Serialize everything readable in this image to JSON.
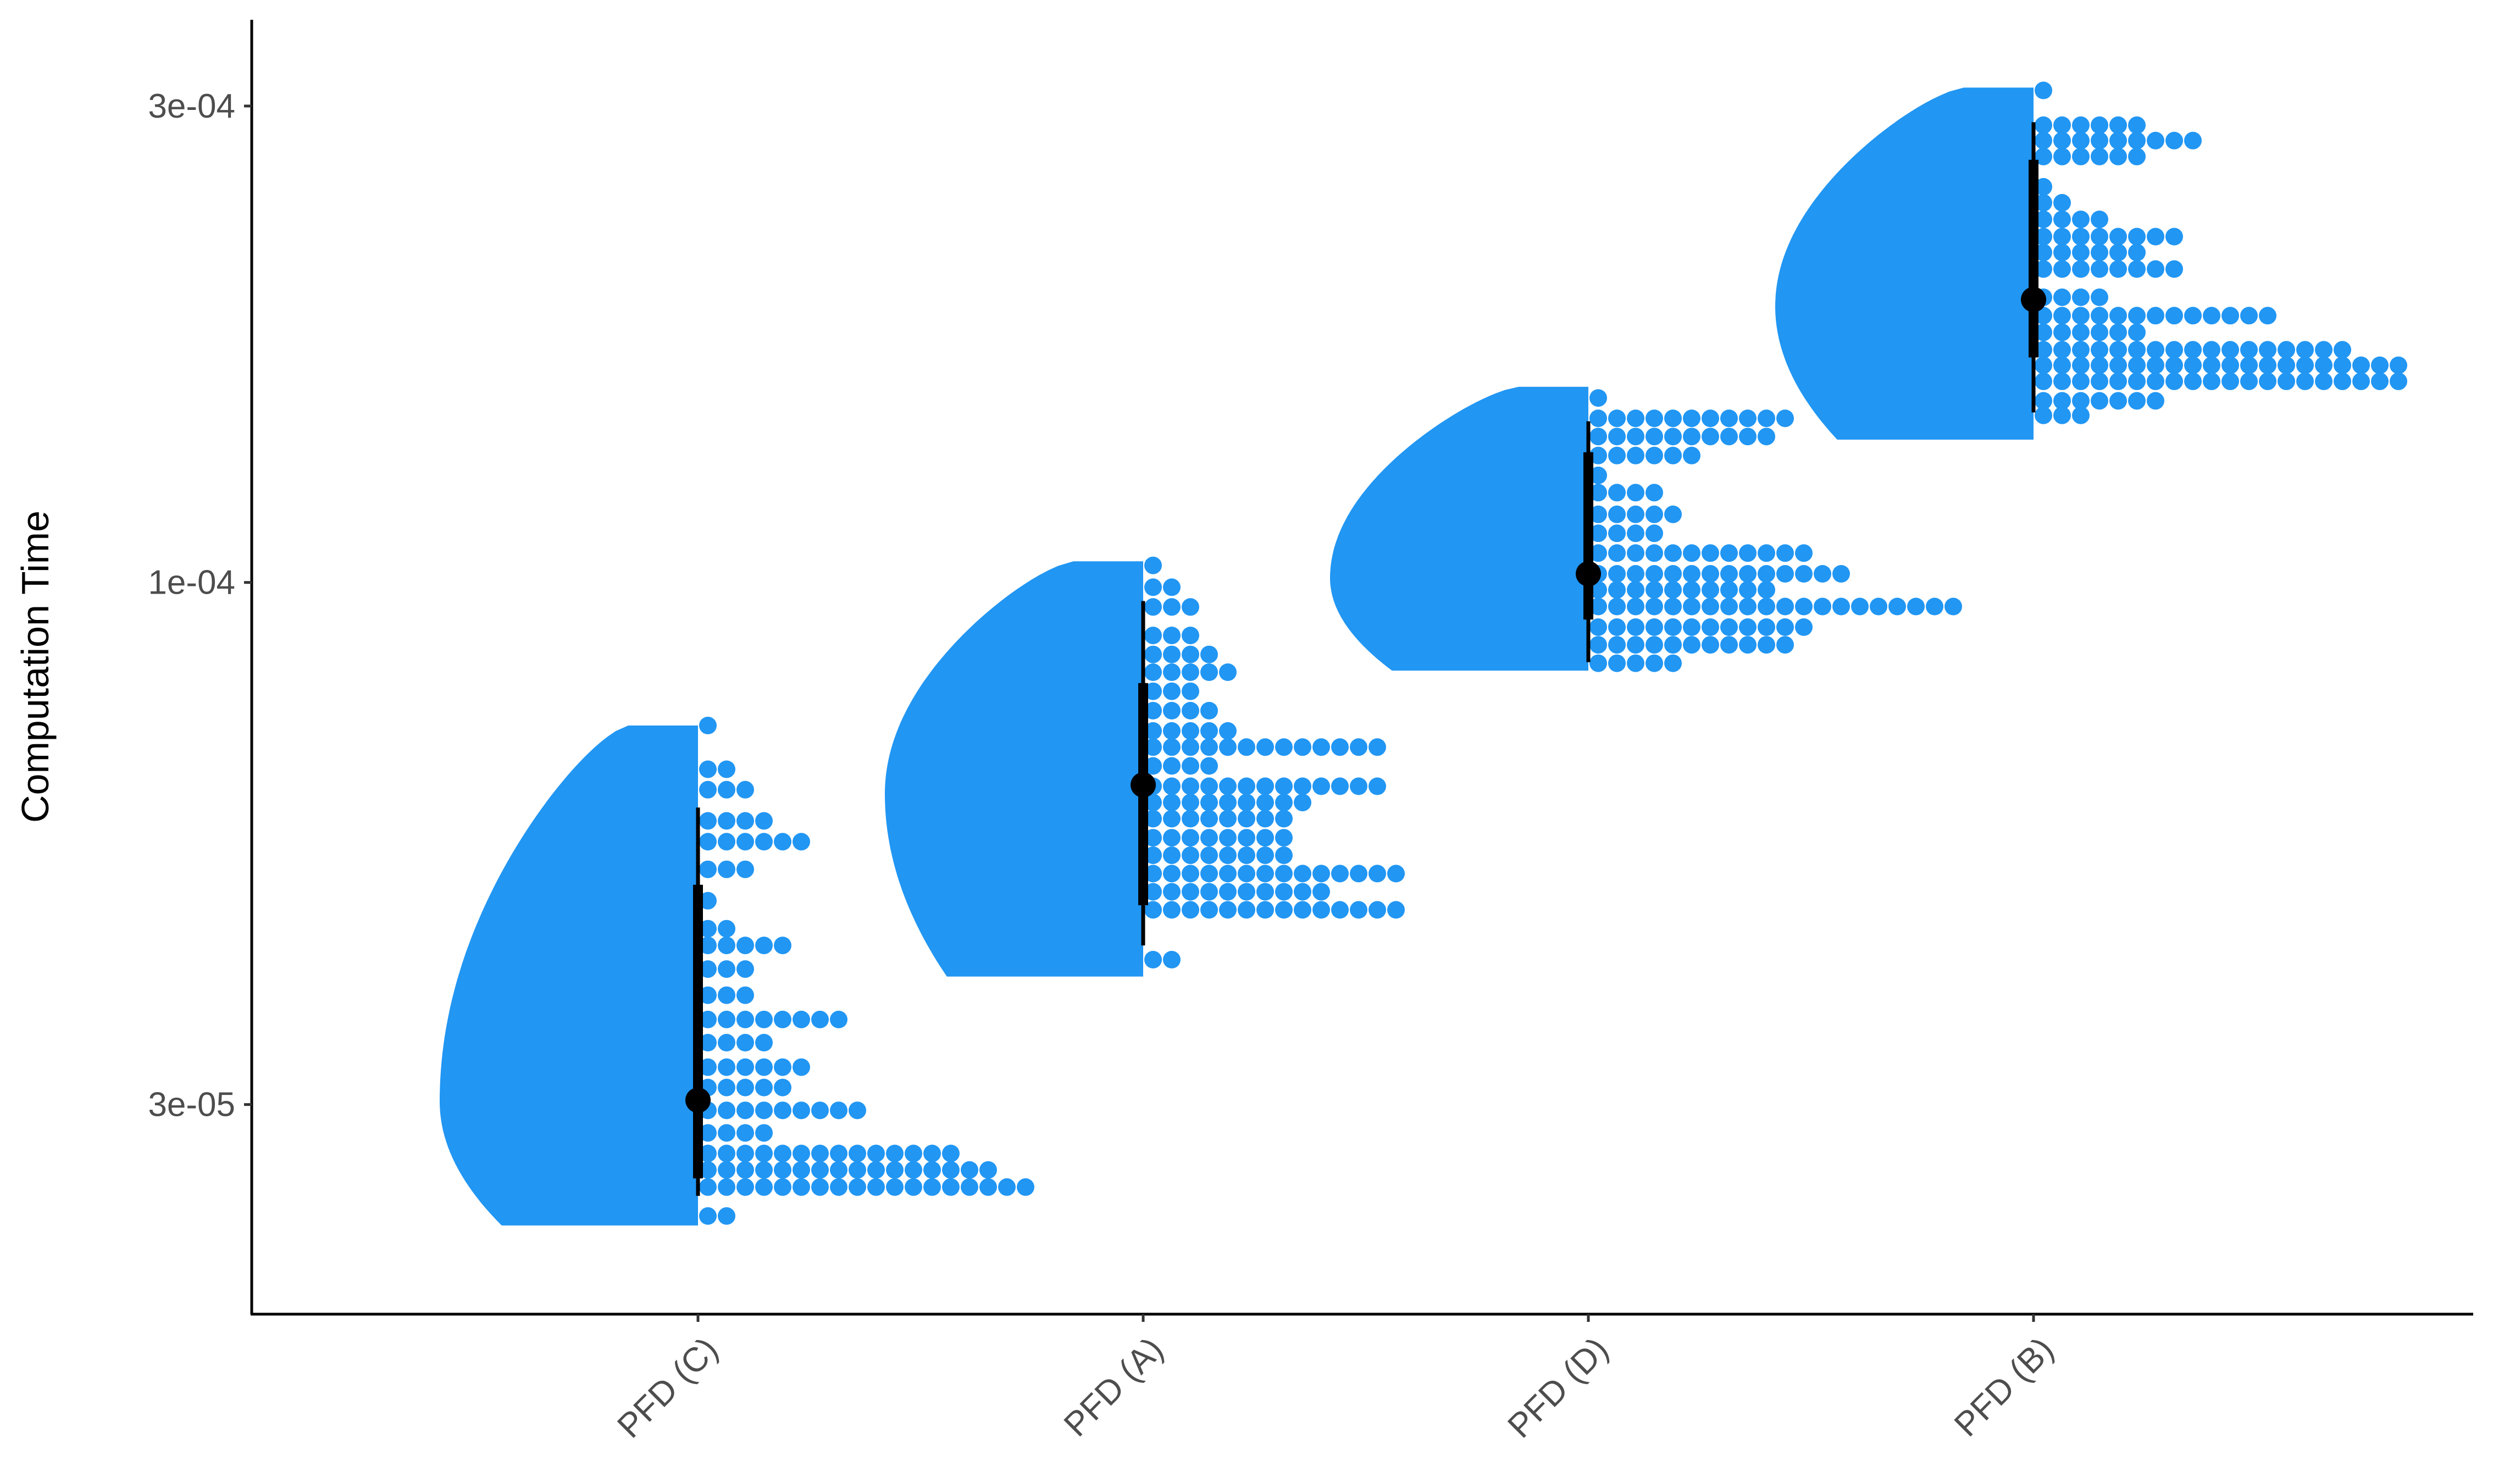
{
  "chart_data": {
    "type": "raincloud",
    "ylabel": "Computation Time",
    "xlabel": "",
    "y_scale": "log10",
    "ylim": [
      1.85e-05,
      0.000366
    ],
    "y_ticks": [
      {
        "value": 3e-05,
        "label": "3e-05"
      },
      {
        "value": 0.0001,
        "label": "1e-04"
      },
      {
        "value": 0.0003,
        "label": "3e-04"
      }
    ],
    "categories": [
      "PFD (C)",
      "PFD (A)",
      "PFD (D)",
      "PFD (B)"
    ],
    "grid": false,
    "legend": "none",
    "fill_color": "#2196F3",
    "summary_color": "#000000",
    "groups": [
      {
        "name": "PFD (C)",
        "median": 3.03e-05,
        "interval_66": [
          2.53e-05,
          4.98e-05
        ],
        "interval_95": [
          2.43e-05,
          5.95e-05
        ],
        "density_range": [
          2.27e-05,
          7.19e-05
        ],
        "density_peak": 3.02e-05,
        "dots": [
          {
            "y": 7.19e-05,
            "n": 1
          },
          {
            "y": 6.5e-05,
            "n": 2
          },
          {
            "y": 6.2e-05,
            "n": 3
          },
          {
            "y": 5.77e-05,
            "n": 4
          },
          {
            "y": 5.5e-05,
            "n": 6
          },
          {
            "y": 5.16e-05,
            "n": 3
          },
          {
            "y": 4.8e-05,
            "n": 1
          },
          {
            "y": 4.5e-05,
            "n": 2
          },
          {
            "y": 4.33e-05,
            "n": 5
          },
          {
            "y": 4.1e-05,
            "n": 3
          },
          {
            "y": 3.86e-05,
            "n": 3
          },
          {
            "y": 3.65e-05,
            "n": 8
          },
          {
            "y": 3.46e-05,
            "n": 4
          },
          {
            "y": 3.27e-05,
            "n": 6
          },
          {
            "y": 3.12e-05,
            "n": 5
          },
          {
            "y": 2.96e-05,
            "n": 9
          },
          {
            "y": 2.81e-05,
            "n": 4
          },
          {
            "y": 2.68e-05,
            "n": 14
          },
          {
            "y": 2.58e-05,
            "n": 16
          },
          {
            "y": 2.48e-05,
            "n": 18
          },
          {
            "y": 2.32e-05,
            "n": 2
          }
        ]
      },
      {
        "name": "PFD (A)",
        "median": 6.27e-05,
        "interval_66": [
          4.75e-05,
          7.93e-05
        ],
        "interval_95": [
          4.33e-05,
          9.58e-05
        ],
        "density_range": [
          4.03e-05,
          0.000105
        ],
        "density_peak": 6.14e-05,
        "dots": [
          {
            "y": 0.000104,
            "n": 1
          },
          {
            "y": 9.89e-05,
            "n": 2
          },
          {
            "y": 9.45e-05,
            "n": 3
          },
          {
            "y": 8.85e-05,
            "n": 3
          },
          {
            "y": 8.47e-05,
            "n": 4
          },
          {
            "y": 8.13e-05,
            "n": 5
          },
          {
            "y": 7.78e-05,
            "n": 3
          },
          {
            "y": 7.44e-05,
            "n": 4
          },
          {
            "y": 7.1e-05,
            "n": 5
          },
          {
            "y": 6.84e-05,
            "n": 13
          },
          {
            "y": 6.55e-05,
            "n": 4
          },
          {
            "y": 6.25e-05,
            "n": 13
          },
          {
            "y": 6.02e-05,
            "n": 9
          },
          {
            "y": 5.8e-05,
            "n": 8
          },
          {
            "y": 5.55e-05,
            "n": 8
          },
          {
            "y": 5.33e-05,
            "n": 8
          },
          {
            "y": 5.11e-05,
            "n": 14
          },
          {
            "y": 4.9e-05,
            "n": 10
          },
          {
            "y": 4.7e-05,
            "n": 14
          },
          {
            "y": 4.19e-05,
            "n": 2
          }
        ]
      },
      {
        "name": "PFD (D)",
        "median": 0.000102,
        "interval_66": [
          9.18e-05,
          0.000135
        ],
        "interval_95": [
          8.32e-05,
          0.000145
        ],
        "density_range": [
          8.16e-05,
          0.000157
        ],
        "density_peak": 0.000101,
        "dots": [
          {
            "y": 0.000153,
            "n": 1
          },
          {
            "y": 0.000146,
            "n": 11
          },
          {
            "y": 0.00014,
            "n": 10
          },
          {
            "y": 0.000134,
            "n": 6
          },
          {
            "y": 0.000128,
            "n": 1
          },
          {
            "y": 0.000123,
            "n": 4
          },
          {
            "y": 0.000117,
            "n": 5
          },
          {
            "y": 0.000112,
            "n": 4
          },
          {
            "y": 0.000107,
            "n": 12
          },
          {
            "y": 0.000102,
            "n": 14
          },
          {
            "y": 9.83e-05,
            "n": 10
          },
          {
            "y": 9.46e-05,
            "n": 20
          },
          {
            "y": 9.02e-05,
            "n": 12
          },
          {
            "y": 8.66e-05,
            "n": 11
          },
          {
            "y": 8.3e-05,
            "n": 5
          }
        ]
      },
      {
        "name": "PFD (B)",
        "median": 0.000192,
        "interval_66": [
          0.000168,
          0.000265
        ],
        "interval_95": [
          0.000148,
          0.000289
        ],
        "density_range": [
          0.000139,
          0.000313
        ],
        "density_peak": 0.000189,
        "dots": [
          {
            "y": 0.000311,
            "n": 1
          },
          {
            "y": 0.000287,
            "n": 6
          },
          {
            "y": 0.000277,
            "n": 9
          },
          {
            "y": 0.000267,
            "n": 6
          },
          {
            "y": 0.000249,
            "n": 1
          },
          {
            "y": 0.00024,
            "n": 2
          },
          {
            "y": 0.000231,
            "n": 4
          },
          {
            "y": 0.000222,
            "n": 8
          },
          {
            "y": 0.000214,
            "n": 6
          },
          {
            "y": 0.000206,
            "n": 8
          },
          {
            "y": 0.000193,
            "n": 4
          },
          {
            "y": 0.000185,
            "n": 13
          },
          {
            "y": 0.000178,
            "n": 6
          },
          {
            "y": 0.000171,
            "n": 17
          },
          {
            "y": 0.000165,
            "n": 20
          },
          {
            "y": 0.000159,
            "n": 20
          },
          {
            "y": 0.000152,
            "n": 7
          },
          {
            "y": 0.000147,
            "n": 3
          }
        ]
      }
    ]
  }
}
